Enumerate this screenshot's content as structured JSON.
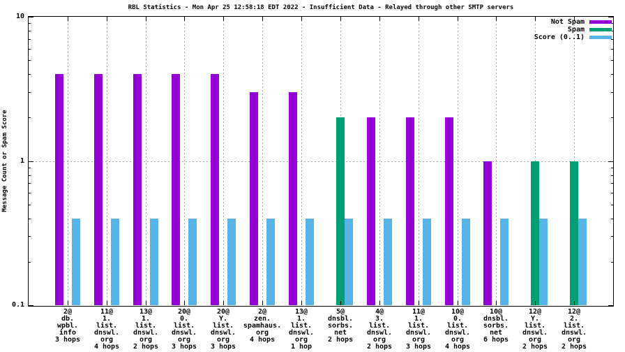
{
  "chart_data": {
    "type": "bar",
    "title": "RBL Statistics - Mon Apr 25 12:58:18 EDT 2022 - Insufficient Data - Relayed through other SMTP servers",
    "ylabel": "Message Count or Spam Score",
    "yscale": "log",
    "ylim": [
      0.1,
      10
    ],
    "ytick_labels": [
      "0.1",
      "1",
      "10"
    ],
    "ytick_values": [
      0.1,
      1,
      10
    ],
    "grid": {
      "y_values": [
        1
      ],
      "x_per_category": true,
      "color": "#a4a4a4",
      "style": "dotted"
    },
    "legend_position": "top-right-inside",
    "colors": {
      "background": "#ffffff",
      "axis": "#000000",
      "not_spam": "#9400D3",
      "spam": "#009E73",
      "score": "#56B4E9"
    },
    "categories": [
      [
        "2@",
        "db.",
        "wpbl.",
        "info",
        "3 hops"
      ],
      [
        "11@",
        "1.",
        "list.",
        "dnswl.",
        "org",
        "4 hops"
      ],
      [
        "13@",
        "1.",
        "list.",
        "dnswl.",
        "org",
        "2 hops"
      ],
      [
        "20@",
        "0.",
        "list.",
        "dnswl.",
        "org",
        "3 hops"
      ],
      [
        "20@",
        "Y.",
        "list.",
        "dnswl.",
        "org",
        "3 hops"
      ],
      [
        "2@",
        "zen.",
        "spamhaus.",
        "org",
        "4 hops"
      ],
      [
        "13@",
        "1.",
        "list.",
        "dnswl.",
        "org",
        "1 hop"
      ],
      [
        "5@",
        "dnsbl.",
        "sorbs.",
        "net",
        "2 hops"
      ],
      [
        "4@",
        "3.",
        "list.",
        "dnswl.",
        "org",
        "2 hops"
      ],
      [
        "11@",
        "1.",
        "list.",
        "dnswl.",
        "org",
        "3 hops"
      ],
      [
        "10@",
        "0.",
        "list.",
        "dnswl.",
        "org",
        "4 hops"
      ],
      [
        "10@",
        "dnsbl.",
        "sorbs.",
        "net",
        "6 hops"
      ],
      [
        "12@",
        "Y.",
        "list.",
        "dnswl.",
        "org",
        "2 hops"
      ],
      [
        "12@",
        "2.",
        "list.",
        "dnswl.",
        "org",
        "2 hops"
      ]
    ],
    "series": [
      {
        "name": "Not Spam",
        "color": "#9400D3",
        "values": [
          4,
          4,
          4,
          4,
          4,
          3,
          3,
          null,
          2,
          2,
          2,
          1,
          null,
          null
        ]
      },
      {
        "name": "Spam",
        "color": "#009E73",
        "values": [
          null,
          null,
          null,
          null,
          null,
          null,
          null,
          2,
          null,
          null,
          null,
          null,
          1,
          1
        ]
      },
      {
        "name": "Score (0..1)",
        "color": "#56B4E9",
        "values": [
          0.4,
          0.4,
          0.4,
          0.4,
          0.4,
          0.4,
          0.4,
          0.4,
          0.4,
          0.4,
          0.4,
          0.4,
          0.4,
          0.4
        ]
      }
    ]
  }
}
